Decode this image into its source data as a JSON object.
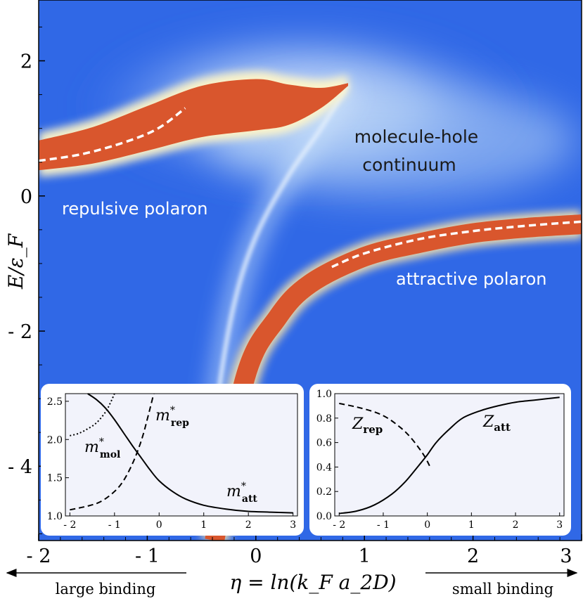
{
  "chart_data": [
    {
      "type": "heatmap",
      "title": "",
      "xlabel": "η = ln(k_F a_2D)",
      "ylabel": "E/ε_F",
      "xlim": [
        -2,
        3
      ],
      "ylim": [
        -5.1,
        2.9
      ],
      "x_ticks": [
        {
          "value": -2,
          "label": "- 2"
        },
        {
          "value": -1,
          "label": "- 1"
        },
        {
          "value": 0,
          "label": "0"
        },
        {
          "value": 1,
          "label": "1"
        },
        {
          "value": 2,
          "label": "2"
        },
        {
          "value": 3,
          "label": "3"
        }
      ],
      "y_ticks": [
        {
          "value": 2,
          "label": "2"
        },
        {
          "value": 0,
          "label": "0"
        },
        {
          "value": -2,
          "label": "- 2"
        },
        {
          "value": -4,
          "label": "- 4"
        }
      ],
      "annotations": {
        "molecule_line1": "molecule-hole",
        "molecule_line2": "continuum",
        "repulsive": "repulsive polaron",
        "attractive": "attractive polaron",
        "large_binding": "large binding",
        "small_binding": "small binding"
      },
      "series": [
        {
          "name": "repulsive polaron band center",
          "x": [
            -2.0,
            -1.5,
            -1.0,
            -0.5,
            0.0,
            0.3,
            0.6,
            0.85
          ],
          "y": [
            0.6,
            0.75,
            1.0,
            1.25,
            1.35,
            1.35,
            1.45,
            1.65
          ]
        },
        {
          "name": "attractive polaron band center",
          "x": [
            -0.38,
            -0.1,
            0.2,
            0.5,
            1.0,
            1.5,
            2.0,
            2.5,
            3.0
          ],
          "y": [
            -5.1,
            -2.7,
            -1.8,
            -1.3,
            -0.9,
            -0.7,
            -0.55,
            -0.47,
            -0.42
          ]
        },
        {
          "name": "repulsive polaron dashed",
          "x": [
            -2.0,
            -1.6,
            -1.2,
            -0.9,
            -0.65
          ],
          "y": [
            0.52,
            0.62,
            0.8,
            1.0,
            1.3
          ]
        },
        {
          "name": "attractive polaron dashed",
          "x": [
            0.7,
            1.0,
            1.5,
            2.0,
            2.5,
            3.0
          ],
          "y": [
            -1.05,
            -0.85,
            -0.64,
            -0.52,
            -0.44,
            -0.38
          ]
        }
      ]
    },
    {
      "type": "line",
      "xlabel": "",
      "ylabel": "",
      "xlim": [
        -2.1,
        3.1
      ],
      "ylim": [
        1.0,
        2.6
      ],
      "x_ticks": [
        {
          "value": -2,
          "label": "- 2"
        },
        {
          "value": -1,
          "label": "- 1"
        },
        {
          "value": 0,
          "label": "0"
        },
        {
          "value": 1,
          "label": "1"
        },
        {
          "value": 2,
          "label": "2"
        },
        {
          "value": 3,
          "label": "3"
        }
      ],
      "y_ticks": [
        {
          "value": 1.0,
          "label": "1.0"
        },
        {
          "value": 1.5,
          "label": "1.5"
        },
        {
          "value": 2.0,
          "label": "2.0"
        },
        {
          "value": 2.5,
          "label": "2.5"
        }
      ],
      "series": [
        {
          "name": "m*att",
          "label_main": "m",
          "label_sup": "*",
          "label_sub": "att",
          "style": "solid",
          "x": [
            -1.6,
            -1.4,
            -1.2,
            -1.0,
            -0.8,
            -0.6,
            -0.4,
            -0.2,
            0.0,
            0.3,
            0.6,
            1.0,
            1.5,
            2.0,
            2.5,
            3.0
          ],
          "y": [
            2.6,
            2.52,
            2.41,
            2.26,
            2.09,
            1.92,
            1.76,
            1.6,
            1.46,
            1.32,
            1.22,
            1.14,
            1.09,
            1.06,
            1.05,
            1.04
          ]
        },
        {
          "name": "m*rep",
          "label_main": "m",
          "label_sup": "*",
          "label_sub": "rep",
          "style": "dashed",
          "x": [
            -2.0,
            -1.6,
            -1.3,
            -1.0,
            -0.8,
            -0.6,
            -0.45,
            -0.35,
            -0.25,
            -0.18,
            -0.12
          ],
          "y": [
            1.08,
            1.13,
            1.19,
            1.32,
            1.46,
            1.68,
            1.9,
            2.08,
            2.3,
            2.46,
            2.6
          ]
        },
        {
          "name": "m*mol",
          "label_main": "m",
          "label_sup": "*",
          "label_sub": "mol",
          "style": "dotted",
          "x": [
            -2.0,
            -1.8,
            -1.6,
            -1.4,
            -1.2,
            -1.1,
            -1.0
          ],
          "y": [
            2.05,
            2.08,
            2.14,
            2.22,
            2.36,
            2.47,
            2.6
          ]
        }
      ]
    },
    {
      "type": "line",
      "xlabel": "",
      "ylabel": "",
      "xlim": [
        -2.1,
        3.1
      ],
      "ylim": [
        0.0,
        1.0
      ],
      "x_ticks": [
        {
          "value": -2,
          "label": "- 2"
        },
        {
          "value": -1,
          "label": "- 1"
        },
        {
          "value": 0,
          "label": "0"
        },
        {
          "value": 1,
          "label": "1"
        },
        {
          "value": 2,
          "label": "2"
        },
        {
          "value": 3,
          "label": "3"
        }
      ],
      "y_ticks": [
        {
          "value": 0.0,
          "label": "0.0"
        },
        {
          "value": 0.2,
          "label": "0.2"
        },
        {
          "value": 0.4,
          "label": "0.4"
        },
        {
          "value": 0.6,
          "label": "0.6"
        },
        {
          "value": 0.8,
          "label": "0.8"
        },
        {
          "value": 1.0,
          "label": "1.0"
        }
      ],
      "series": [
        {
          "name": "Zatt",
          "label_main": "Z",
          "label_sub": "att",
          "style": "solid",
          "x": [
            -2.0,
            -1.6,
            -1.2,
            -0.8,
            -0.5,
            -0.2,
            0.0,
            0.2,
            0.5,
            0.8,
            1.2,
            1.6,
            2.0,
            2.5,
            3.0
          ],
          "y": [
            0.02,
            0.04,
            0.09,
            0.18,
            0.28,
            0.41,
            0.5,
            0.6,
            0.71,
            0.8,
            0.86,
            0.9,
            0.93,
            0.95,
            0.97
          ]
        },
        {
          "name": "Zrep",
          "label_main": "Z",
          "label_sub": "rep",
          "style": "dashed",
          "x": [
            -2.0,
            -1.6,
            -1.2,
            -0.9,
            -0.6,
            -0.4,
            -0.2,
            -0.05,
            0.05
          ],
          "y": [
            0.92,
            0.89,
            0.85,
            0.8,
            0.72,
            0.65,
            0.56,
            0.48,
            0.41
          ]
        }
      ]
    }
  ]
}
